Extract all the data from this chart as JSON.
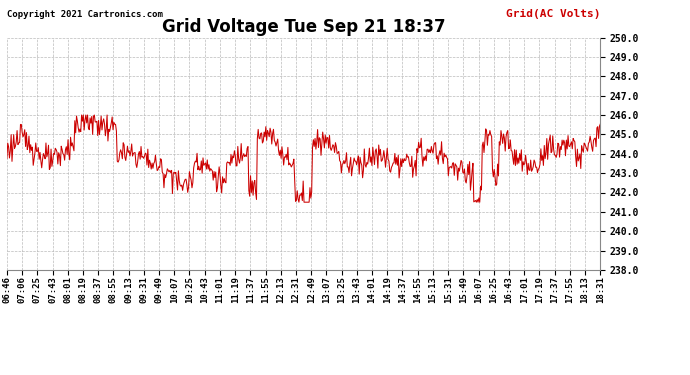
{
  "title": "Grid Voltage Tue Sep 21 18:37",
  "legend_label": "Grid(AC Volts)",
  "copyright_text": "Copyright 2021 Cartronics.com",
  "line_color": "#cc0000",
  "legend_color": "#cc0000",
  "copyright_color": "#000000",
  "background_color": "#ffffff",
  "plot_bg_color": "#ffffff",
  "grid_color": "#bbbbbb",
  "ylim": [
    238.0,
    250.0
  ],
  "yticks": [
    238.0,
    239.0,
    240.0,
    241.0,
    242.0,
    243.0,
    244.0,
    245.0,
    246.0,
    247.0,
    248.0,
    249.0,
    250.0
  ],
  "x_tick_labels": [
    "06:46",
    "07:06",
    "07:25",
    "07:43",
    "08:01",
    "08:19",
    "08:37",
    "08:55",
    "09:13",
    "09:31",
    "09:49",
    "10:07",
    "10:25",
    "10:43",
    "11:01",
    "11:19",
    "11:37",
    "11:55",
    "12:13",
    "12:31",
    "12:49",
    "13:07",
    "13:25",
    "13:43",
    "14:01",
    "14:19",
    "14:37",
    "14:55",
    "15:13",
    "15:31",
    "15:49",
    "16:07",
    "16:25",
    "16:43",
    "17:01",
    "17:19",
    "17:37",
    "17:55",
    "18:13",
    "18:31"
  ],
  "title_fontsize": 12,
  "axis_fontsize": 6.5,
  "copyright_fontsize": 6.5,
  "legend_fontsize": 8,
  "line_width": 0.75
}
